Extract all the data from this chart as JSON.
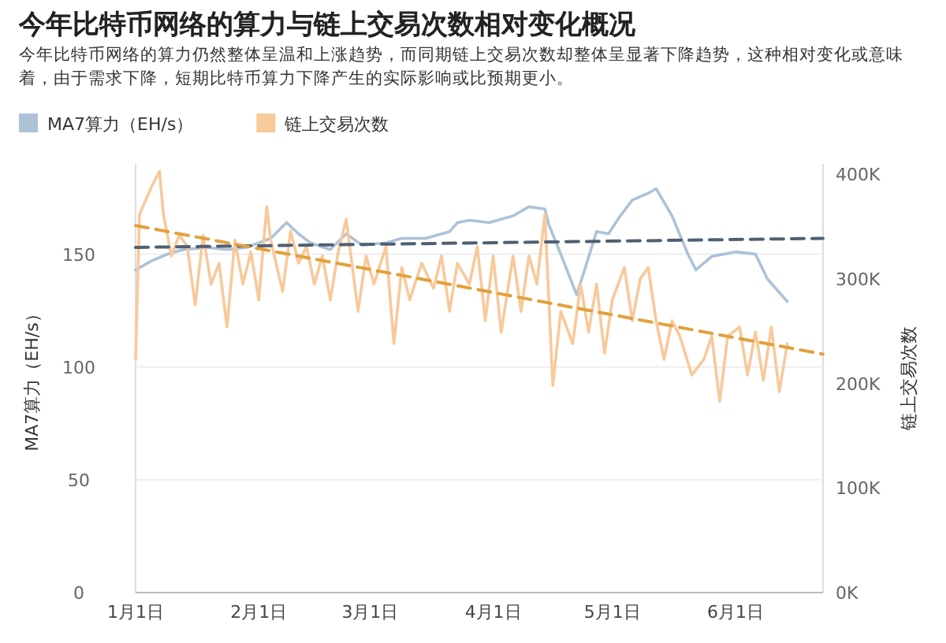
{
  "chart_data": {
    "type": "line",
    "title": "今年比特币网络的算力与链上交易次数相对变化概况",
    "subtitle": "今年比特币网络的算力仍然整体呈温和上涨趋势，而同期链上交易次数却整体呈显著下降趋势，这种相对变化或意味着，由于需求下降，短期比特币算力下降产生的实际影响或比预期更小。",
    "ylabel": "MA7算力（EH/s）",
    "y2label": "链上交易次数",
    "xlim": [
      "--01-01",
      "--06-23"
    ],
    "xticks": [
      {
        "value": "--01-01",
        "label": "1月1日"
      },
      {
        "value": "--02-01",
        "label": "2月1日"
      },
      {
        "value": "--03-01",
        "label": "3月1日"
      },
      {
        "value": "--04-01",
        "label": "4月1日"
      },
      {
        "value": "--05-01",
        "label": "5月1日"
      },
      {
        "value": "--06-01",
        "label": "6月1日"
      }
    ],
    "ylim": [
      0,
      190
    ],
    "yticks": [
      0,
      50,
      100,
      150
    ],
    "y2lim": [
      0,
      410000
    ],
    "y2ticks": [
      {
        "value": 0,
        "label": "0K"
      },
      {
        "value": 100000,
        "label": "100K"
      },
      {
        "value": 200000,
        "label": "200K"
      },
      {
        "value": 300000,
        "label": "300K"
      },
      {
        "value": 400000,
        "label": "400K"
      }
    ],
    "grid": "y",
    "legend": "top left",
    "series": [
      {
        "name": "MA7算力（EH/s）",
        "color": "#adc2d6",
        "x": [
          "--01-01",
          "--01-05",
          "--01-09",
          "--01-13",
          "--01-19",
          "--01-24",
          "--01-29",
          "--02-04",
          "--02-08",
          "--02-11",
          "--02-14",
          "--02-19",
          "--02-23",
          "--02-27",
          "--03-05",
          "--03-09",
          "--03-15",
          "--03-21",
          "--03-23",
          "--03-26",
          "--03-31",
          "--04-06",
          "--04-10",
          "--04-14",
          "--04-15",
          "--04-18",
          "--04-22",
          "--04-24",
          "--04-27",
          "--04-30",
          "--05-03",
          "--05-06",
          "--05-10",
          "--05-12",
          "--05-16",
          "--05-20",
          "--05-22",
          "--05-26",
          "--06-01",
          "--06-06",
          "--06-09",
          "--06-14"
        ],
        "values": [
          143,
          147,
          150,
          152,
          153,
          152,
          153,
          157,
          164,
          159,
          155,
          152,
          159,
          154,
          155,
          157,
          157,
          160,
          164,
          165,
          164,
          167,
          171,
          170,
          163,
          150,
          132,
          143,
          160,
          159,
          167,
          174,
          177,
          179,
          167,
          150,
          143,
          149,
          151,
          150,
          139,
          129
        ]
      },
      {
        "name": "链上交易次数",
        "color": "#f8c99a",
        "axis": "y2",
        "x": [
          "--01-01",
          "--01-02",
          "--01-05",
          "--01-07",
          "--01-08",
          "--01-10",
          "--01-12",
          "--01-14",
          "--01-16",
          "--01-18",
          "--01-20",
          "--01-22",
          "--01-24",
          "--01-26",
          "--01-28",
          "--01-30",
          "--02-01",
          "--02-03",
          "--02-04",
          "--02-07",
          "--02-09",
          "--02-11",
          "--02-13",
          "--02-15",
          "--02-17",
          "--02-19",
          "--02-21",
          "--02-23",
          "--02-26",
          "--02-28",
          "--03-02",
          "--03-05",
          "--03-07",
          "--03-09",
          "--03-11",
          "--03-14",
          "--03-17",
          "--03-19",
          "--03-21",
          "--03-23",
          "--03-26",
          "--03-28",
          "--03-30",
          "--04-01",
          "--04-03",
          "--04-06",
          "--04-08",
          "--04-10",
          "--04-12",
          "--04-14",
          "--04-16",
          "--04-18",
          "--04-21",
          "--04-23",
          "--04-25",
          "--04-27",
          "--04-29",
          "--05-01",
          "--05-04",
          "--05-06",
          "--05-08",
          "--05-10",
          "--05-12",
          "--05-14",
          "--05-16",
          "--05-18",
          "--05-21",
          "--05-24",
          "--05-26",
          "--05-28",
          "--05-30",
          "--06-02",
          "--06-04",
          "--06-06",
          "--06-08",
          "--06-10",
          "--06-12",
          "--06-14"
        ],
        "values": [
          223000,
          362000,
          388000,
          403000,
          362000,
          322000,
          342000,
          331000,
          275000,
          342000,
          295000,
          315000,
          254000,
          337000,
          295000,
          326000,
          280000,
          369000,
          337000,
          288000,
          346000,
          315000,
          331000,
          295000,
          322000,
          280000,
          326000,
          357000,
          269000,
          322000,
          295000,
          331000,
          238000,
          311000,
          280000,
          315000,
          291000,
          322000,
          269000,
          315000,
          295000,
          331000,
          260000,
          322000,
          249000,
          322000,
          269000,
          322000,
          295000,
          362000,
          198000,
          269000,
          238000,
          295000,
          249000,
          295000,
          229000,
          280000,
          311000,
          260000,
          300000,
          311000,
          260000,
          223000,
          260000,
          245000,
          208000,
          223000,
          245000,
          183000,
          245000,
          254000,
          208000,
          249000,
          203000,
          254000,
          192000,
          238000
        ]
      },
      {
        "color": "#4f6073",
        "line_style": "dashed",
        "x": [
          "--01-01",
          "--06-23"
        ],
        "values": [
          153,
          157
        ]
      },
      {
        "color": "#e3a03c",
        "line_style": "dashed",
        "axis": "y2",
        "x": [
          "--01-01",
          "--06-23"
        ],
        "values": [
          351000,
          228000
        ]
      }
    ]
  }
}
